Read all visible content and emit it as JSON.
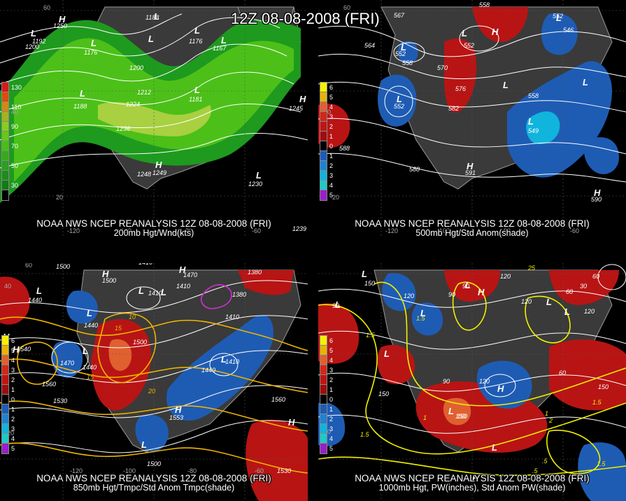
{
  "title": "12Z 08-08-2008 (FRI)",
  "panels": [
    {
      "id": "p200",
      "caption_line1": "NOAA NWS NCEP REANALYSIS 12Z 08-08-2008 (FRI)",
      "caption_line2": "200mb Hgt/Wnd(kts)",
      "legend": [
        {
          "label": "130",
          "color": "#d81a1a"
        },
        {
          "label": "",
          "color": "#e04a10"
        },
        {
          "label": "110",
          "color": "#d08a10"
        },
        {
          "label": "",
          "color": "#a8b020"
        },
        {
          "label": "90",
          "color": "#8ccc20"
        },
        {
          "label": "",
          "color": "#66c818"
        },
        {
          "label": "70",
          "color": "#4cbc18"
        },
        {
          "label": "",
          "color": "#38a818"
        },
        {
          "label": "50",
          "color": "#2aa01e"
        },
        {
          "label": "",
          "color": "#1e8c1c"
        },
        {
          "label": "30",
          "color": "#157818"
        },
        {
          "label": "",
          "color": "#000000"
        }
      ],
      "contour_labels": [
        "1200",
        "1192",
        "1188",
        "1176",
        "1176",
        "1167",
        "1200",
        "1212",
        "1224",
        "1236",
        "1188",
        "1181",
        "1245",
        "1248",
        "1249",
        "1230",
        "1239",
        "1250"
      ],
      "high_low_labels": [
        "H",
        "H",
        "L",
        "L",
        "L",
        "L",
        "L",
        "L",
        "H",
        "L",
        "L",
        "L"
      ],
      "lat_labels": [
        "60",
        "40",
        "20"
      ],
      "lon_labels": [
        "-120",
        "-100",
        "-80",
        "-60"
      ]
    },
    {
      "id": "p500",
      "caption_line1": "NOAA NWS NCEP REANALYSIS 12Z 08-08-2008 (FRI)",
      "caption_line2": "500mb Hgt/Std Anom(shade)",
      "legend": [
        {
          "label": "6",
          "color": "#f5f000"
        },
        {
          "label": "5",
          "color": "#e8b400"
        },
        {
          "label": "4",
          "color": "#e06030"
        },
        {
          "label": "3",
          "color": "#d02818"
        },
        {
          "label": "2",
          "color": "#c01414"
        },
        {
          "label": "1",
          "color": "#a00c0c"
        },
        {
          "label": "0",
          "color": "#000000"
        },
        {
          "label": "1",
          "color": "#1e5cb4"
        },
        {
          "label": "2",
          "color": "#1e82d2"
        },
        {
          "label": "3",
          "color": "#10b4dc"
        },
        {
          "label": "4",
          "color": "#20c8c8"
        },
        {
          "label": "5",
          "color": "#9820c8"
        }
      ],
      "contour_labels": [
        "558",
        "552",
        "564",
        "546",
        "558",
        "552",
        "552",
        "570",
        "576",
        "582",
        "558",
        "552",
        "588",
        "588",
        "591",
        "549",
        "590",
        "567"
      ],
      "high_low_labels": [
        "L",
        "L",
        "L",
        "L",
        "L",
        "L",
        "L",
        "H",
        "H",
        "H"
      ],
      "lat_labels": [
        "60",
        "40",
        "20"
      ],
      "lon_labels": [
        "-120",
        "-100",
        "-80",
        "-60"
      ]
    },
    {
      "id": "p850",
      "caption_line1": "NOAA NWS NCEP REANALYSIS 12Z 08-08-2008 (FRI)",
      "caption_line2": "850mb Hgt/Tmpc/Std Anom Tmpc(shade)",
      "legend": [
        {
          "label": "6",
          "color": "#f5f000"
        },
        {
          "label": "5",
          "color": "#e8b400"
        },
        {
          "label": "4",
          "color": "#e06030"
        },
        {
          "label": "3",
          "color": "#d02818"
        },
        {
          "label": "2",
          "color": "#c01414"
        },
        {
          "label": "1",
          "color": "#a00c0c"
        },
        {
          "label": "0",
          "color": "#000000"
        },
        {
          "label": "1",
          "color": "#1e5cb4"
        },
        {
          "label": "2",
          "color": "#1e82d2"
        },
        {
          "label": "3",
          "color": "#10b4dc"
        },
        {
          "label": "4",
          "color": "#20c8c8"
        },
        {
          "label": "5",
          "color": "#9820c8"
        }
      ],
      "contour_labels": [
        "1500",
        "1500",
        "1410",
        "1470",
        "1380",
        "1440",
        "1440",
        "1410",
        "1500",
        "1470",
        "1440",
        "1440",
        "1410",
        "1560",
        "1530",
        "1500",
        "1530",
        "1560",
        "1350",
        "1380",
        "1410",
        "15",
        "10",
        "20",
        "15",
        "1410",
        "1540",
        "1553"
      ],
      "high_low_labels": [
        "H",
        "H",
        "H",
        "L",
        "L",
        "L",
        "L",
        "L",
        "L",
        "H",
        "H",
        "L",
        "H"
      ],
      "lat_labels": [
        "60",
        "40",
        "20"
      ],
      "lon_labels": [
        "-120",
        "-100",
        "-80",
        "-60"
      ]
    },
    {
      "id": "p1000",
      "caption_line1": "NOAA NWS NCEP REANALYSIS 12Z 08-08-2008 (FRI)",
      "caption_line2": "1000mb Hgt, PW(inches), Std Anom PW(shade)",
      "legend": [
        {
          "label": "6",
          "color": "#f5f000"
        },
        {
          "label": "5",
          "color": "#e8b400"
        },
        {
          "label": "4",
          "color": "#e06030"
        },
        {
          "label": "3",
          "color": "#d02818"
        },
        {
          "label": "2",
          "color": "#c01414"
        },
        {
          "label": "1",
          "color": "#a00c0c"
        },
        {
          "label": "0",
          "color": "#000000"
        },
        {
          "label": "1",
          "color": "#1e5cb4"
        },
        {
          "label": "2",
          "color": "#1e82d2"
        },
        {
          "label": "3",
          "color": "#10b4dc"
        },
        {
          "label": "4",
          "color": "#20c8c8"
        },
        {
          "label": "5",
          "color": "#9820c8"
        }
      ],
      "contour_labels": [
        "150",
        "120",
        "90",
        "60",
        "90",
        "150",
        "120",
        "90",
        "60",
        "150",
        "150",
        "120",
        "1.5",
        "1.5",
        "1",
        "1.5",
        "1",
        "1.5",
        ".5",
        "2",
        "25",
        "30",
        "60",
        "90",
        "120",
        "120",
        "150",
        ".5",
        "1.5"
      ],
      "high_low_labels": [
        "L",
        "L",
        "L",
        "H",
        "L",
        "H",
        "L",
        "L",
        "H",
        "L",
        "L",
        "L",
        "H"
      ],
      "lat_labels": [
        "20"
      ],
      "lon_labels": []
    }
  ],
  "colors": {
    "background": "#000000",
    "land": "#3a3a3a",
    "coast": "#9a9a9a",
    "contour": "#ffffff",
    "temp_contour": "#f0b400",
    "pw_contour": "#f0f000",
    "warm_anom": "#c01414",
    "cold_anom": "#1e5cb4",
    "wind_light": "#1e9a1e",
    "wind_mid": "#4cc018",
    "wind_high": "#a8d040"
  }
}
